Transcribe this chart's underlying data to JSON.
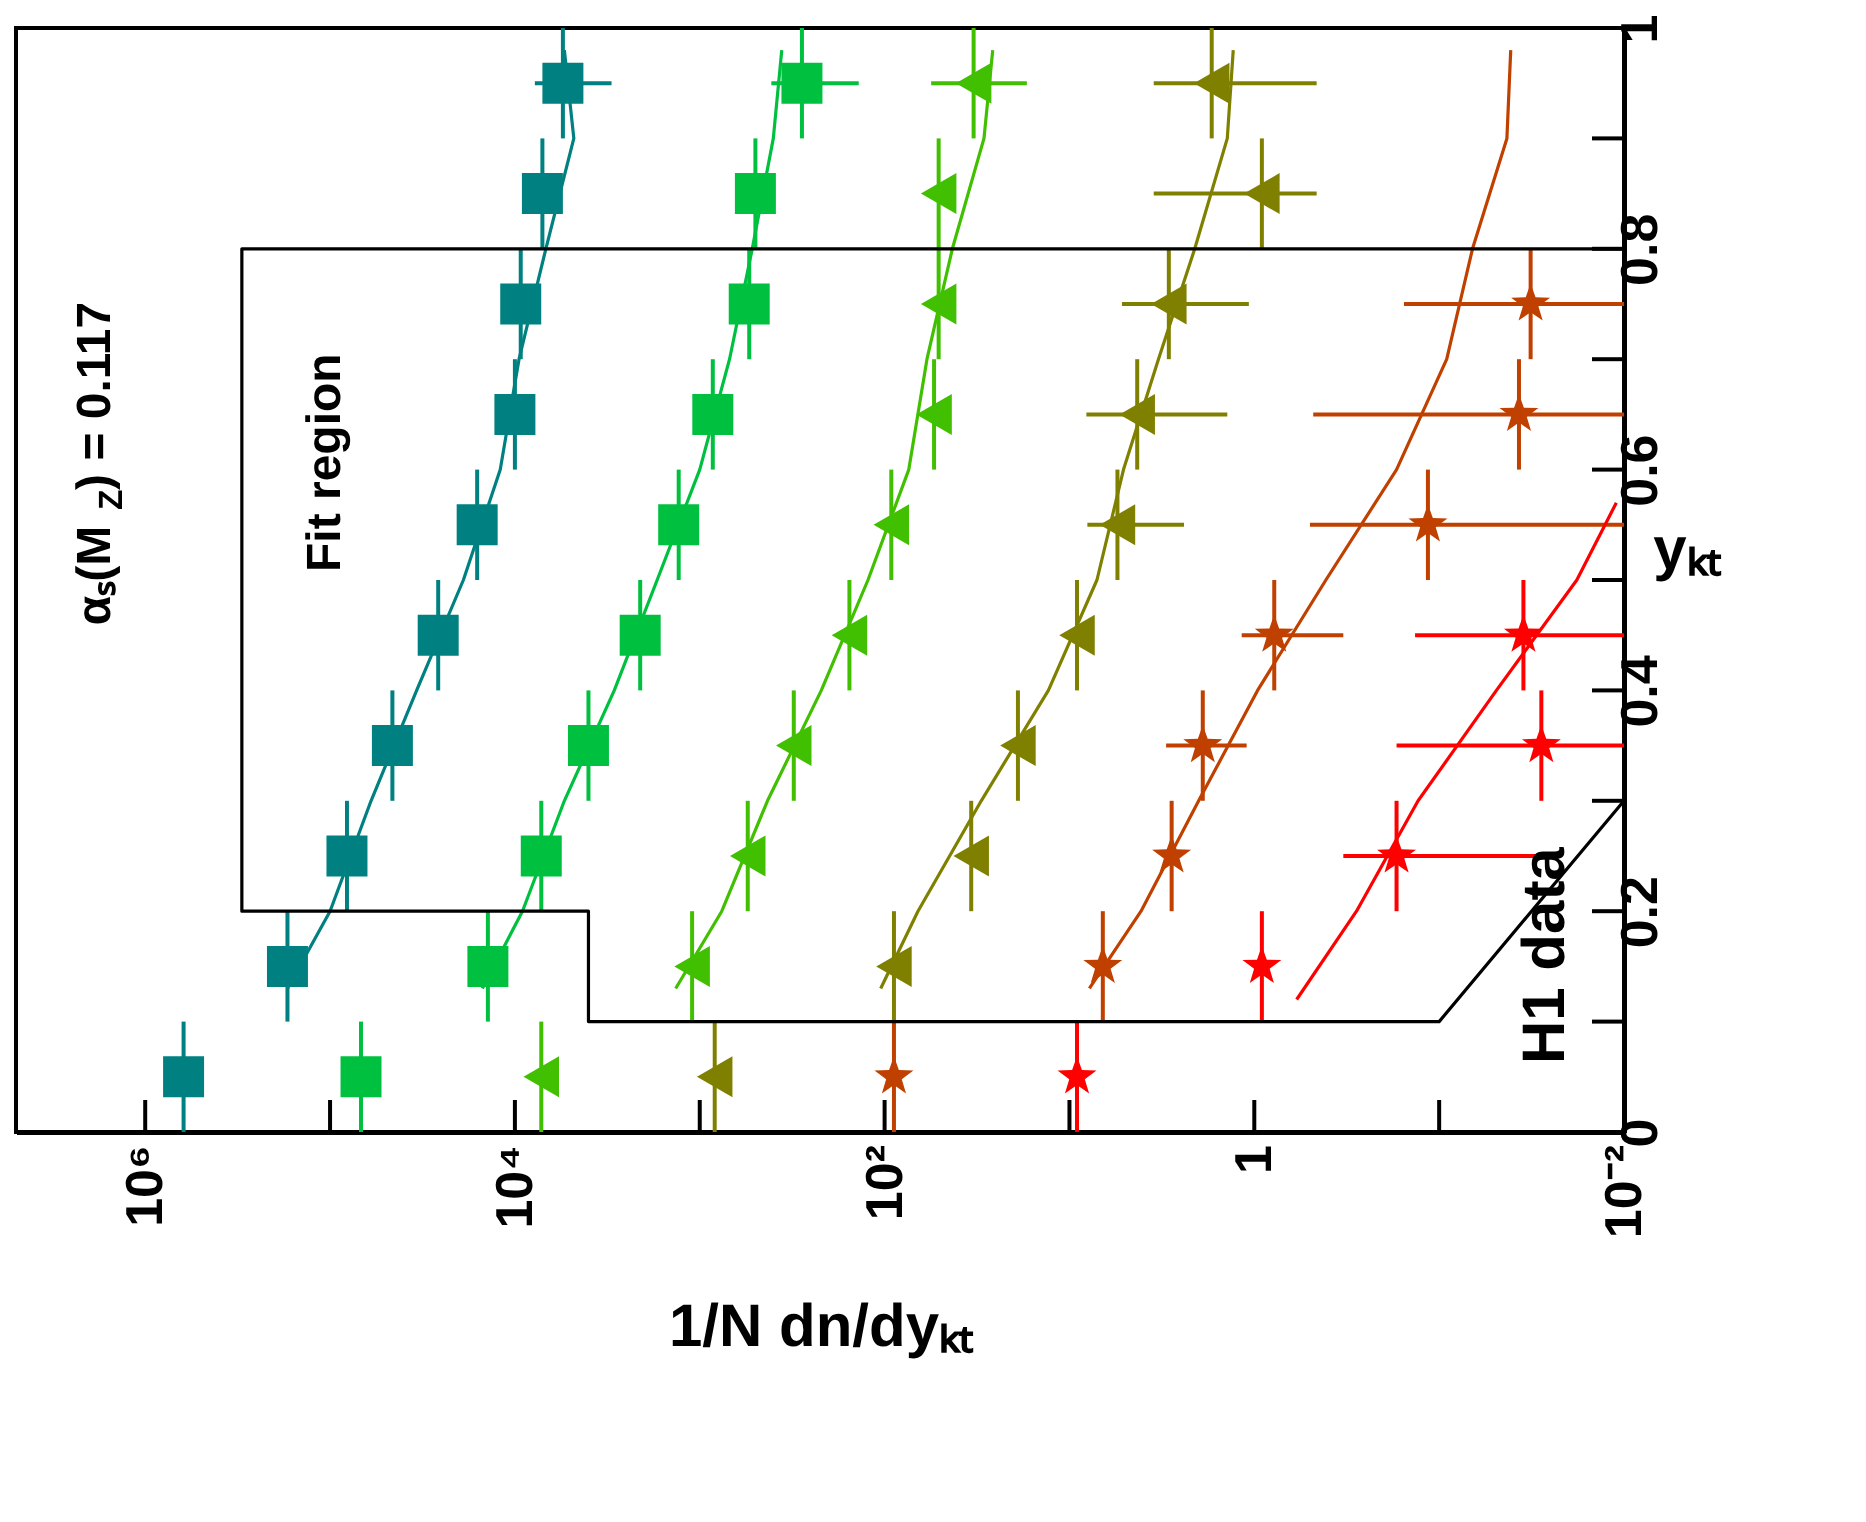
{
  "chart_data": {
    "type": "scatter",
    "orientation": "horizontal",
    "log": "x",
    "xlabel": "1/N dn/dyₖₜ",
    "ylabel": "yₖₜ",
    "xlim": [
      5000000,
      0.01
    ],
    "ylim": [
      0,
      1
    ],
    "xticks": [
      {
        "value": 1000000,
        "label": "10⁶"
      },
      {
        "value": 100000,
        "label": null
      },
      {
        "value": 10000,
        "label": "10⁴"
      },
      {
        "value": 1000,
        "label": null
      },
      {
        "value": 100,
        "label": "10²"
      },
      {
        "value": 10,
        "label": null
      },
      1,
      {
        "value": 0.1,
        "label": null
      },
      {
        "value": 0.01,
        "label": "10⁻²"
      }
    ],
    "yticks": [
      0,
      {
        "value": 0.1,
        "label": null
      },
      0.2,
      {
        "value": 0.3,
        "label": null
      },
      0.4,
      {
        "value": 0.5,
        "label": null
      },
      0.6,
      {
        "value": 0.7,
        "label": null
      },
      0.8,
      {
        "value": 0.9,
        "label": null
      },
      1
    ],
    "grid": false,
    "annotations": [
      "αₛ(M$_{Z}$) = 0.117",
      "Fit region",
      "H1 data"
    ],
    "series": [
      {
        "marker": "square",
        "color": "#008080",
        "x": [
          0.05,
          0.15,
          0.25,
          0.35,
          0.45,
          0.55,
          0.65,
          0.75,
          0.85,
          0.95
        ],
        "values": [
          620000,
          170000,
          81000,
          46000,
          26000,
          16000,
          10000,
          9300,
          7100,
          5500
        ],
        "errors": [
          null,
          null,
          null,
          null,
          null,
          null,
          null,
          null,
          null,
          [
            3000,
            7800
          ]
        ],
        "xerrors": [
          0.05,
          0.05,
          0.05,
          0.05,
          0.05,
          0.05,
          0.05,
          0.05,
          0.05,
          0.05
        ]
      },
      {
        "marker": "square",
        "color": "#00c040",
        "x": [
          0.05,
          0.15,
          0.25,
          0.35,
          0.45,
          0.55,
          0.65,
          0.75,
          0.85,
          0.95
        ],
        "values": [
          68000,
          14000,
          7200,
          4000,
          2100,
          1300,
          850,
          540,
          500,
          280
        ],
        "errors": [
          null,
          null,
          null,
          null,
          null,
          null,
          null,
          null,
          null,
          [
            138,
            410
          ]
        ],
        "xerrors": [
          0.05,
          0.05,
          0.05,
          0.05,
          0.05,
          0.05,
          0.05,
          0.05,
          0.05,
          0.05
        ]
      },
      {
        "marker": "triangle",
        "color": "#40c000",
        "x": [
          0.05,
          0.15,
          0.25,
          0.35,
          0.45,
          0.55,
          0.65,
          0.75,
          0.85,
          0.95
        ],
        "values": [
          7200,
          1100,
          550,
          310,
          155,
          92,
          54,
          51,
          51,
          33
        ],
        "errors": [
          null,
          null,
          null,
          null,
          null,
          null,
          null,
          null,
          null,
          [
            17,
            56
          ]
        ],
        "xerrors": [
          0.05,
          0.05,
          0.05,
          0.05,
          0.05,
          0.05,
          0.05,
          0.05,
          0.05,
          0.05
        ]
      },
      {
        "marker": "triangle",
        "color": "#808000",
        "x": [
          0.05,
          0.15,
          0.25,
          0.35,
          0.45,
          0.55,
          0.65,
          0.75,
          0.85,
          0.95
        ],
        "values": [
          830,
          89,
          34,
          19,
          9.1,
          5.5,
          4.3,
          2.9,
          0.91,
          1.7
        ],
        "errors": [
          null,
          null,
          null,
          null,
          null,
          [
            2.4,
            8
          ],
          [
            1.4,
            8.1
          ],
          [
            1.07,
            5.2
          ],
          [
            0.46,
            3.5
          ],
          [
            0.46,
            3.5
          ]
        ],
        "xerrors": [
          0.05,
          0.05,
          0.05,
          0.05,
          0.05,
          0.05,
          0.05,
          0.05,
          0.05,
          0.05
        ]
      },
      {
        "marker": "star",
        "color": "#c04000",
        "x": [
          0.05,
          0.15,
          0.25,
          0.35,
          0.45,
          0.55,
          0.65,
          0.75
        ],
        "values": [
          89,
          6.6,
          2.8,
          1.9,
          0.78,
          0.115,
          0.037,
          0.032
        ],
        "errors": [
          null,
          null,
          null,
          [
            1.1,
            3
          ],
          [
            0.33,
            1.17
          ],
          [
            0.01,
            0.5
          ],
          [
            0.01,
            0.48
          ],
          [
            0.01,
            0.155
          ]
        ],
        "xerrors": [
          0.05,
          0.05,
          0.05,
          0.05,
          0.05,
          0.05,
          0.05,
          0.05
        ]
      },
      {
        "marker": "star",
        "color": "#ff0000",
        "x": [
          0.05,
          0.15,
          0.25,
          0.35,
          0.45
        ],
        "values": [
          9.1,
          0.91,
          0.17,
          0.028,
          0.035
        ],
        "errors": [
          null,
          null,
          [
            0.024,
            0.33
          ],
          [
            0.01,
            0.17
          ],
          [
            0.01,
            0.135
          ]
        ],
        "xerrors": [
          0.05,
          0.05,
          0.05,
          0.05,
          0.05
        ]
      },
      {
        "type": "line",
        "marker": "none",
        "color": "#008080",
        "x": [
          0.13,
          0.2,
          0.3,
          0.4,
          0.5,
          0.6,
          0.7,
          0.8,
          0.9,
          0.98
        ],
        "values": [
          170000,
          100000,
          60000,
          34000,
          19000,
          12000,
          9500,
          6800,
          4800,
          5400
        ]
      },
      {
        "type": "line",
        "marker": "none",
        "color": "#00c040",
        "x": [
          0.13,
          0.2,
          0.3,
          0.4,
          0.5,
          0.6,
          0.7,
          0.8,
          0.9,
          0.98
        ],
        "values": [
          15000,
          9100,
          5400,
          2900,
          1700,
          1000,
          690,
          520,
          400,
          360
        ]
      },
      {
        "type": "line",
        "marker": "none",
        "color": "#40c000",
        "x": [
          0.13,
          0.2,
          0.3,
          0.4,
          0.5,
          0.6,
          0.7,
          0.8,
          0.9,
          0.98
        ],
        "values": [
          1350,
          760,
          430,
          220,
          123,
          74,
          59,
          43,
          29,
          26
        ]
      },
      {
        "type": "line",
        "marker": "none",
        "color": "#808000",
        "x": [
          0.13,
          0.2,
          0.3,
          0.4,
          0.5,
          0.6,
          0.7,
          0.8,
          0.9,
          0.98
        ],
        "values": [
          105,
          66,
          30,
          13,
          7.1,
          5.1,
          3.3,
          2.1,
          1.4,
          1.3
        ]
      },
      {
        "type": "line",
        "marker": "none",
        "color": "#c04000",
        "x": [
          0.13,
          0.2,
          0.3,
          0.4,
          0.5,
          0.6,
          0.7,
          0.8,
          0.9,
          0.98
        ],
        "values": [
          7.8,
          4.1,
          2.0,
          0.96,
          0.41,
          0.17,
          0.091,
          0.066,
          0.043,
          0.041
        ]
      },
      {
        "type": "line",
        "marker": "none",
        "color": "#ff0000",
        "x": [
          0.12,
          0.2,
          0.3,
          0.4,
          0.5,
          0.57
        ],
        "values": [
          0.59,
          0.28,
          0.13,
          0.049,
          0.018,
          0.011
        ]
      },
      {
        "type": "line",
        "marker": "none",
        "color": "#000000",
        "x": [
          0.8,
          0.8,
          0.2,
          0.2,
          0.1,
          0.1,
          0.3
        ],
        "values": [
          0.01,
          300000,
          300000,
          4000,
          4000,
          0.1,
          0.01
        ]
      }
    ]
  }
}
